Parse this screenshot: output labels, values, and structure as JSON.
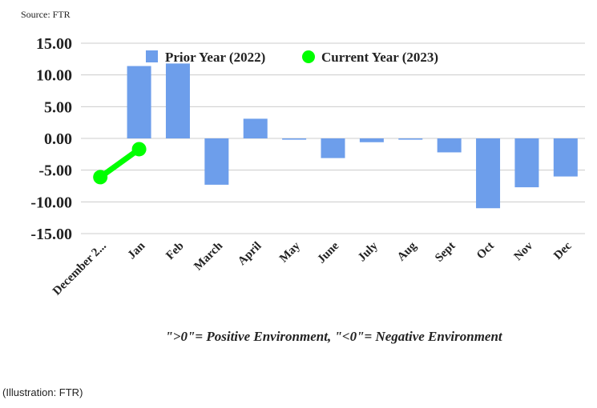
{
  "source_note": "Source: FTR",
  "footnote": "\">0\"= Positive Environment, \"<0\"= Negative Environment",
  "credit": "(Illustration: FTR)",
  "chart_data": {
    "type": "bar",
    "categories": [
      "December 2...",
      "Jan",
      "Feb",
      "March",
      "April",
      "May",
      "June",
      "July",
      "Aug",
      "Sept",
      "Oct",
      "Nov",
      "Dec"
    ],
    "ylim": [
      -15,
      15
    ],
    "yticks": [
      15,
      10,
      5,
      0,
      -5,
      -10,
      -15
    ],
    "ytick_labels": [
      "15.00",
      "10.00",
      "5.00",
      "0.00",
      "-5.00",
      "-10.00",
      "-15.00"
    ],
    "grid": true,
    "legend_position": "top",
    "series": [
      {
        "name": "Prior Year (2022)",
        "kind": "bar",
        "color": "#6d9eeb",
        "values": [
          null,
          11.4,
          11.8,
          -7.3,
          3.1,
          -0.2,
          -3.1,
          -0.6,
          -0.2,
          -2.2,
          -11.0,
          -7.7,
          -6.0
        ]
      },
      {
        "name": "Current Year (2023)",
        "kind": "line",
        "color": "#00ff00",
        "values": [
          -6.1,
          -1.7,
          null,
          null,
          null,
          null,
          null,
          null,
          null,
          null,
          null,
          null,
          null
        ]
      }
    ]
  }
}
